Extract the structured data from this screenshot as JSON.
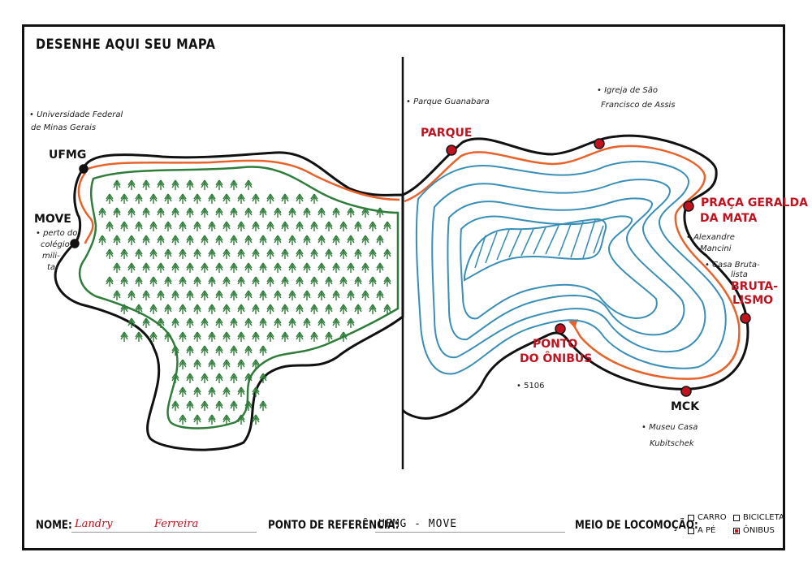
{
  "title": "DESENHE AQUI SEU MAPA",
  "notes": {
    "ufmg_note_line1": "• Universidade Federal",
    "ufmg_note_line2": "de Minas Gerais",
    "move_note_line1": "• perto do",
    "move_note_line2": "colégio",
    "move_note_line3": "mili-",
    "move_note_line4": "tar",
    "parque_note": "• Parque Guanabara",
    "igreja_note_line1": "• Igreja de São",
    "igreja_note_line2": "Francisco de Assis",
    "alexandre_note_line1": "• Alexandre",
    "alexandre_note_line2": "Mancini",
    "casa_note_line1": "• Casa Bruta-",
    "casa_note_line2": "lista",
    "onibus_note": "• 5106",
    "museu_note_line1": "• Museu Casa",
    "museu_note_line2": "Kubitschek"
  },
  "labels": {
    "ufmg": "UFMG",
    "move": "MOVE",
    "parque": "PARQUE",
    "praca_line1": "PRAÇA GERALDA",
    "praca_line2": "DA MATA",
    "brutalismo_line1": "BRUTA-",
    "brutalismo_line2": "LISMO",
    "ponto_line1": "PONTO",
    "ponto_line2": "DO ÔNIBUS",
    "mck": "MCK"
  },
  "footer": {
    "nome_label": "NOME:",
    "nome_value_first": "Landry",
    "nome_value_last": "Ferreira",
    "ref_label": "PONTO DE REFERÊNCIA:",
    "ref_value": "UFMG - MOVE",
    "meio_label": "MEIO DE LOCOMOÇÃO:",
    "options": [
      {
        "label": "CARRO",
        "checked": false
      },
      {
        "label": "BICICLETA",
        "checked": false
      },
      {
        "label": "A PÉ",
        "checked": false
      },
      {
        "label": "ÔNIBUS",
        "checked": true
      }
    ]
  },
  "colors": {
    "outline": "#111111",
    "route_orange": "#e8632a",
    "forest_green": "#2f7d3a",
    "water_blue": "#3a8fb7",
    "marker_red": "#c1121f"
  }
}
